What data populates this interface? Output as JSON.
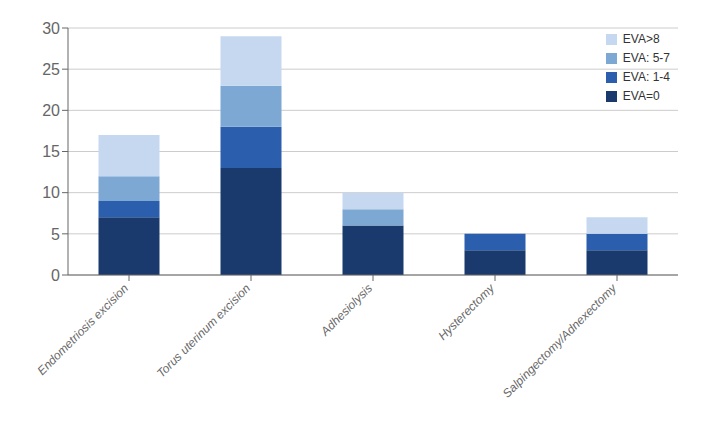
{
  "chart_data": {
    "type": "bar",
    "stacked": true,
    "categories": [
      "Endometriosis excision",
      "Torus uterinum excision",
      "Adhesiolysis",
      "Hysterectomy",
      "Salpingectomy/Adnexectomy"
    ],
    "series": [
      {
        "name": "EVA=0",
        "color": "#1a3a6e",
        "values": [
          7,
          13,
          6,
          3,
          3
        ]
      },
      {
        "name": "EVA: 1-4",
        "color": "#2b5fad",
        "values": [
          2,
          5,
          0,
          2,
          2
        ]
      },
      {
        "name": "EVA: 5-7",
        "color": "#7ea8d4",
        "values": [
          3,
          5,
          2,
          0,
          0
        ]
      },
      {
        "name": "EVA>8",
        "color": "#c5d8f0",
        "values": [
          5,
          6,
          2,
          0,
          2
        ]
      }
    ],
    "ylim": [
      0,
      30
    ],
    "yticks": [
      0,
      5,
      10,
      15,
      20,
      25,
      30
    ],
    "grid": true,
    "legend": "upper right"
  }
}
